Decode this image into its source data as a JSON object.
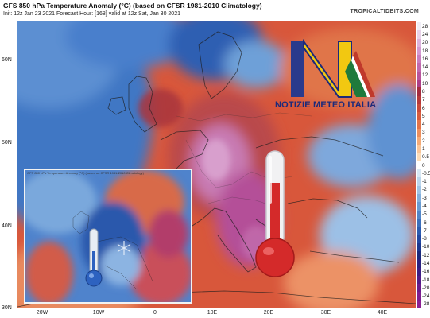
{
  "header": {
    "title": "GFS 850 hPa Temperature Anomaly (°C) (based on CFSR 1981-2010 Climatology)",
    "subtitle": "Init: 12z Jan 23 2021   Forecast Hour: [168]   valid at 12z Sat, Jan 30 2021",
    "source": "TROPICALTIDBITS.COM"
  },
  "map": {
    "lat_labels": [
      "60N",
      "50N",
      "40N",
      "30N"
    ],
    "lon_labels": [
      "20W",
      "10W",
      "0",
      "10E",
      "20E",
      "30E",
      "40E"
    ]
  },
  "colorbar": {
    "labels": [
      "28",
      "24",
      "20",
      "18",
      "16",
      "14",
      "12",
      "10",
      "8",
      "7",
      "6",
      "5",
      "4",
      "3",
      "2",
      "1",
      "0.5",
      "0",
      "-0.5",
      "-1",
      "-2",
      "-3",
      "-4",
      "-5",
      "-6",
      "-7",
      "-8",
      "-10",
      "-12",
      "-14",
      "-16",
      "-18",
      "-20",
      "-24",
      "-28"
    ],
    "colors": [
      "#f0eef6",
      "#e8d2e8",
      "#dcb4dc",
      "#d49ad0",
      "#c97fbf",
      "#c16aae",
      "#b8549c",
      "#ad3f89",
      "#a52c3e",
      "#b73a3a",
      "#c94a3a",
      "#d75c3e",
      "#e2744a",
      "#ec8f5e",
      "#f4ab78",
      "#f9c69a",
      "#fbdcb8",
      "#ffffff",
      "#d8e8f4",
      "#bcd6ec",
      "#a0c4e4",
      "#84b0dc",
      "#6a9cd2",
      "#5286c8",
      "#3c70bc",
      "#2c5cb0",
      "#2248a2",
      "#1c3890",
      "#1a2a7c",
      "#2a2280",
      "#3c1e84",
      "#521c88",
      "#6a1c8c",
      "#7e1e90",
      "#8c2094"
    ]
  },
  "inset": {
    "title": "GFS 850 hPa Temperature Anomaly (°C) (based on CFSR 1981-2010 Climatology)"
  },
  "logo": {
    "text": "NOTIZIE METEO ITALIA"
  }
}
